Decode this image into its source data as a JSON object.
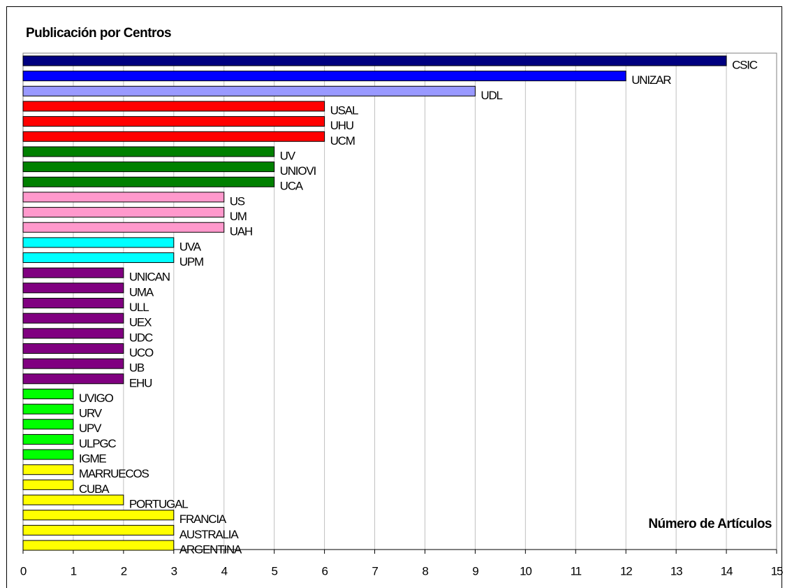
{
  "chart_data": {
    "type": "bar",
    "orientation": "horizontal",
    "title": "Publicación por Centros",
    "xlabel": "Número de Artículos",
    "categories": [
      "CSIC",
      "UNIZAR",
      "UDL",
      "USAL",
      "UHU",
      "UCM",
      "UV",
      "UNIOVI",
      "UCA",
      "US",
      "UM",
      "UAH",
      "UVA",
      "UPM",
      "UNICAN",
      "UMA",
      "ULL",
      "UEX",
      "UDC",
      "UCO",
      "UB",
      "EHU",
      "UVIGO",
      "URV",
      "UPV",
      "ULPGC",
      "IGME",
      "MARRUECOS",
      "CUBA",
      "PORTUGAL",
      "FRANCIA",
      "AUSTRALIA",
      "ARGENTINA"
    ],
    "values": [
      14,
      12,
      9,
      6,
      6,
      6,
      5,
      5,
      5,
      4,
      4,
      4,
      3,
      3,
      2,
      2,
      2,
      2,
      2,
      2,
      2,
      2,
      1,
      1,
      1,
      1,
      1,
      1,
      1,
      2,
      3,
      3,
      3
    ],
    "colors": [
      "#000080",
      "#0000ff",
      "#9999ff",
      "#ff0000",
      "#ff0000",
      "#ff0000",
      "#008000",
      "#008000",
      "#008000",
      "#ff99cc",
      "#ff99cc",
      "#ff99cc",
      "#00ffff",
      "#00ffff",
      "#800080",
      "#800080",
      "#800080",
      "#800080",
      "#800080",
      "#800080",
      "#800080",
      "#800080",
      "#00ff00",
      "#00ff00",
      "#00ff00",
      "#00ff00",
      "#00ff00",
      "#ffff00",
      "#ffff00",
      "#ffff00",
      "#ffff00",
      "#ffff00",
      "#ffff00"
    ],
    "xlim": [
      0,
      15
    ],
    "xticks": [
      0,
      1,
      2,
      3,
      4,
      5,
      6,
      7,
      8,
      9,
      10,
      11,
      12,
      13,
      14,
      15
    ],
    "grid": true
  }
}
